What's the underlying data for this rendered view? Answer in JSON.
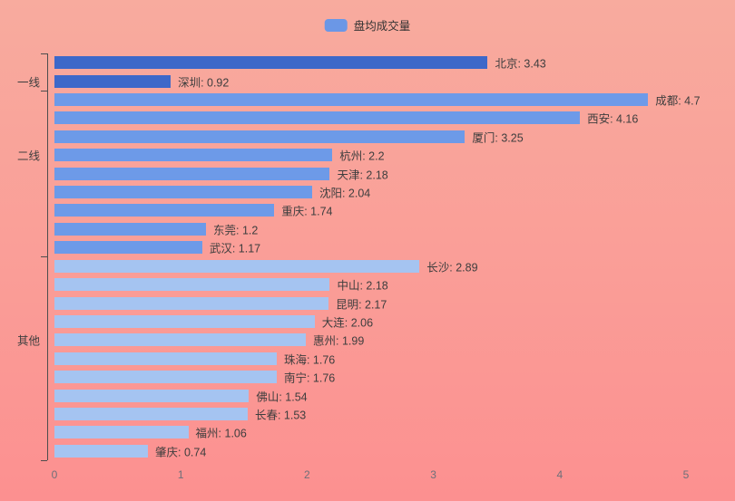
{
  "legend": {
    "label": "盘均成交量"
  },
  "colors": {
    "tier1_bar": "#3d68c9",
    "tier2_bar": "#6d9ae8",
    "tier3_bar": "#a5c4f1",
    "legend_marker": "#6b97e6",
    "background_top": "#f8ab9e",
    "background_bottom": "#fc9090",
    "bar_label_text": "#3e3e3e",
    "axis_text": "#6e7079",
    "axis_line": "#4d4d4d",
    "legend_text": "#333333"
  },
  "chart_data": {
    "type": "bar",
    "orientation": "horizontal",
    "title": "",
    "legend": [
      "盘均成交量"
    ],
    "label_format": "{name}: {value}",
    "xlim": [
      0,
      5
    ],
    "x_ticks": [
      "0",
      "1",
      "2",
      "3",
      "4",
      "5"
    ],
    "grid": false,
    "groups": [
      {
        "label": "一线",
        "bar_color": "#3d68c9",
        "cities": [
          {
            "name": "北京",
            "value": 3.43
          },
          {
            "name": "深圳",
            "value": 0.92
          }
        ]
      },
      {
        "label": "二线",
        "bar_color": "#6d9ae8",
        "cities": [
          {
            "name": "成都",
            "value": 4.7
          },
          {
            "name": "西安",
            "value": 4.16
          },
          {
            "name": "厦门",
            "value": 3.25
          },
          {
            "name": "杭州",
            "value": 2.2
          },
          {
            "name": "天津",
            "value": 2.18
          },
          {
            "name": "沈阳",
            "value": 2.04
          },
          {
            "name": "重庆",
            "value": 1.74
          },
          {
            "name": "东莞",
            "value": 1.2
          },
          {
            "name": "武汉",
            "value": 1.17
          }
        ]
      },
      {
        "label": "其他",
        "bar_color": "#a5c4f1",
        "cities": [
          {
            "name": "长沙",
            "value": 2.89
          },
          {
            "name": "中山",
            "value": 2.18
          },
          {
            "name": "昆明",
            "value": 2.17
          },
          {
            "name": "大连",
            "value": 2.06
          },
          {
            "name": "惠州",
            "value": 1.99
          },
          {
            "name": "珠海",
            "value": 1.76
          },
          {
            "name": "南宁",
            "value": 1.76
          },
          {
            "name": "佛山",
            "value": 1.54
          },
          {
            "name": "长春",
            "value": 1.53
          },
          {
            "name": "福州",
            "value": 1.06
          },
          {
            "name": "肇庆",
            "value": 0.74
          }
        ]
      }
    ]
  }
}
